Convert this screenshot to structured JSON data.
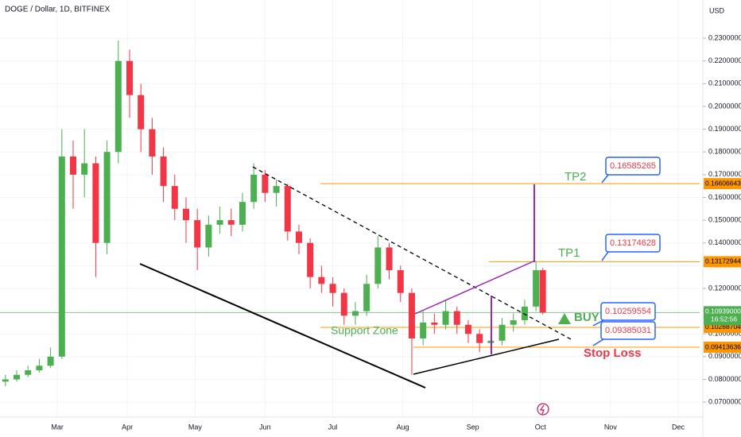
{
  "chart_data": {
    "type": "candlestick",
    "title": "DOGE / Dollar, 1D, BITFINEX",
    "currency": "USD",
    "x": [
      5,
      10,
      15,
      20,
      25,
      30,
      35,
      40,
      45,
      50,
      55,
      60,
      65,
      70,
      75,
      80,
      85,
      90,
      95,
      100,
      105,
      110,
      115,
      120,
      125,
      130,
      135,
      140,
      145,
      150,
      155,
      160,
      165,
      170,
      175,
      180,
      185,
      190,
      195,
      200,
      205,
      210,
      215,
      220,
      225,
      230,
      235,
      240,
      243
    ],
    "open": [
      0.079,
      0.08,
      0.082,
      0.084,
      0.086,
      0.09,
      0.178,
      0.17,
      0.175,
      0.14,
      0.18,
      0.22,
      0.205,
      0.19,
      0.178,
      0.165,
      0.155,
      0.15,
      0.138,
      0.148,
      0.15,
      0.148,
      0.158,
      0.17,
      0.162,
      0.165,
      0.145,
      0.14,
      0.125,
      0.122,
      0.118,
      0.108,
      0.11,
      0.122,
      0.138,
      0.128,
      0.118,
      0.098,
      0.105,
      0.104,
      0.11,
      0.104,
      0.1,
      0.096,
      0.097,
      0.104,
      0.106,
      0.112,
      0.128
    ],
    "high": [
      0.082,
      0.084,
      0.086,
      0.089,
      0.094,
      0.19,
      0.185,
      0.19,
      0.178,
      0.185,
      0.229,
      0.225,
      0.21,
      0.195,
      0.182,
      0.17,
      0.16,
      0.155,
      0.152,
      0.156,
      0.155,
      0.162,
      0.175,
      0.172,
      0.168,
      0.166,
      0.148,
      0.142,
      0.13,
      0.125,
      0.12,
      0.114,
      0.126,
      0.143,
      0.14,
      0.13,
      0.12,
      0.11,
      0.109,
      0.115,
      0.112,
      0.106,
      0.102,
      0.1,
      0.107,
      0.109,
      0.115,
      0.132,
      0.129
    ],
    "low": [
      0.077,
      0.079,
      0.081,
      0.083,
      0.085,
      0.089,
      0.155,
      0.16,
      0.125,
      0.135,
      0.175,
      0.195,
      0.18,
      0.17,
      0.158,
      0.15,
      0.14,
      0.128,
      0.134,
      0.144,
      0.143,
      0.145,
      0.155,
      0.158,
      0.156,
      0.141,
      0.135,
      0.12,
      0.118,
      0.112,
      0.104,
      0.104,
      0.108,
      0.12,
      0.124,
      0.114,
      0.082,
      0.095,
      0.1,
      0.102,
      0.1,
      0.096,
      0.092,
      0.093,
      0.095,
      0.101,
      0.104,
      0.11,
      0.1085
    ],
    "close": [
      0.08,
      0.082,
      0.084,
      0.086,
      0.09,
      0.178,
      0.17,
      0.175,
      0.14,
      0.18,
      0.22,
      0.205,
      0.19,
      0.178,
      0.165,
      0.155,
      0.15,
      0.138,
      0.148,
      0.15,
      0.148,
      0.158,
      0.17,
      0.162,
      0.165,
      0.145,
      0.14,
      0.125,
      0.122,
      0.118,
      0.108,
      0.11,
      0.122,
      0.138,
      0.128,
      0.118,
      0.098,
      0.105,
      0.104,
      0.11,
      0.104,
      0.1,
      0.096,
      0.097,
      0.104,
      0.106,
      0.112,
      0.128,
      0.1094
    ],
    "up_color": "#4caf50",
    "down_color": "#f23645",
    "xlim": [
      2.6,
      312.5
    ],
    "xticks": [
      {
        "value": 28,
        "label": "Mar"
      },
      {
        "value": 59,
        "label": "Apr"
      },
      {
        "value": 89,
        "label": "May"
      },
      {
        "value": 120,
        "label": "Jun"
      },
      {
        "value": 150,
        "label": "Jul"
      },
      {
        "value": 181,
        "label": "Aug"
      },
      {
        "value": 212,
        "label": "Sep"
      },
      {
        "value": 242,
        "label": "Oct"
      },
      {
        "value": 273,
        "label": "Nov"
      },
      {
        "value": 303,
        "label": "Dec"
      }
    ],
    "ylim": [
      0.0634,
      0.2468
    ],
    "yticks": [
      {
        "value": 0.07,
        "label": "0.07000000"
      },
      {
        "value": 0.08,
        "label": "0.08000000"
      },
      {
        "value": 0.09,
        "label": "0.09000000"
      },
      {
        "value": 0.1,
        "label": "0.10000000"
      },
      {
        "value": 0.11,
        "label": "0.11000000"
      },
      {
        "value": 0.12,
        "label": "0.12000000"
      },
      {
        "value": 0.13,
        "label": "0.13000000"
      },
      {
        "value": 0.14,
        "label": "0.14000000"
      },
      {
        "value": 0.15,
        "label": "0.15000000"
      },
      {
        "value": 0.16,
        "label": "0.16000000"
      },
      {
        "value": 0.17,
        "label": "0.17000000"
      },
      {
        "value": 0.18,
        "label": "0.18000000"
      },
      {
        "value": 0.19,
        "label": "0.19000000"
      },
      {
        "value": 0.2,
        "label": "0.20000000"
      },
      {
        "value": 0.21,
        "label": "0.21000000"
      },
      {
        "value": 0.22,
        "label": "0.22000000"
      },
      {
        "value": 0.23,
        "label": "0.23000000"
      }
    ],
    "grid": true,
    "last_price": {
      "value": 0.10939,
      "label": "0.10939000"
    },
    "countdown": "16:52:56",
    "last_color": "#4caf50",
    "levels": [
      0.16606643,
      0.13172944,
      0.10288704,
      0.09413636
    ],
    "level_color": "#ff9800",
    "callouts": [
      0.16585265,
      0.13174628,
      0.10259554,
      0.09385031
    ],
    "annotations": {
      "tp2": "TP2",
      "tp1": "TP1",
      "buy": "BUY",
      "stop_loss": "Stop Loss",
      "support_zone": "Support Zone"
    }
  }
}
